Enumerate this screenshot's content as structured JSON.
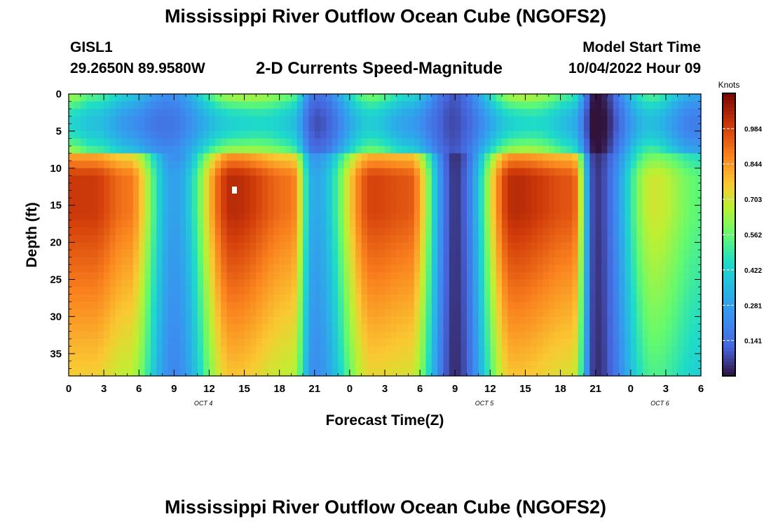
{
  "header": {
    "title": "Mississippi River Outflow Ocean Cube (NGOFS2)",
    "station": "GISL1",
    "coordinates": "29.2650N  89.9580W",
    "subtitle": "2-D Currents Speed-Magnitude",
    "model_start_label": "Model Start Time",
    "model_start_value": "10/04/2022 Hour 09"
  },
  "footer": {
    "title": "Mississippi River Outflow Ocean Cube (NGOFS2)"
  },
  "chart_data": {
    "type": "heatmap",
    "title": "2-D Currents Speed-Magnitude",
    "xlabel": "Forecast Time(Z)",
    "ylabel": "Depth (ft)",
    "x_ticks": [
      "0",
      "3",
      "6",
      "9",
      "12",
      "15",
      "18",
      "21",
      "0",
      "3",
      "6",
      "9",
      "12",
      "15",
      "18",
      "21",
      "0",
      "3",
      "6"
    ],
    "date_labels": [
      "OCT 4",
      "OCT 5",
      "OCT 6"
    ],
    "y_ticks": [
      "0",
      "5",
      "10",
      "15",
      "20",
      "25",
      "30",
      "35"
    ],
    "ylim": [
      0,
      38
    ],
    "y_inverted": true,
    "x_range_hours": [
      0,
      54
    ],
    "colorbar": {
      "label": "Knots",
      "ticks": [
        "0.984",
        "0.844",
        "0.703",
        "0.562",
        "0.422",
        "0.281",
        "0.141"
      ],
      "tick_values": [
        0.984,
        0.844,
        0.703,
        0.562,
        0.422,
        0.281,
        0.141
      ],
      "range": [
        0.0,
        1.125
      ],
      "colormap": "turbo"
    },
    "notes": {
      "grid": false,
      "surface_layer_depth_ft": 8,
      "description_of_pattern": "alternating ebb/flood current magnitude over forecast hours"
    },
    "time_profile": {
      "hours": [
        0,
        2,
        5,
        9,
        14,
        19,
        21,
        26,
        29,
        33,
        38,
        43,
        45,
        50,
        54
      ],
      "subsurface_speed_knots": [
        1.0,
        1.0,
        0.9,
        0.28,
        1.03,
        0.9,
        0.3,
        0.98,
        0.95,
        0.05,
        1.03,
        0.95,
        0.05,
        0.7,
        0.55
      ],
      "surface_speed_knots": [
        0.65,
        0.5,
        0.45,
        0.2,
        0.72,
        0.55,
        0.2,
        0.55,
        0.5,
        0.05,
        0.72,
        0.5,
        0.05,
        0.5,
        0.35
      ]
    }
  }
}
